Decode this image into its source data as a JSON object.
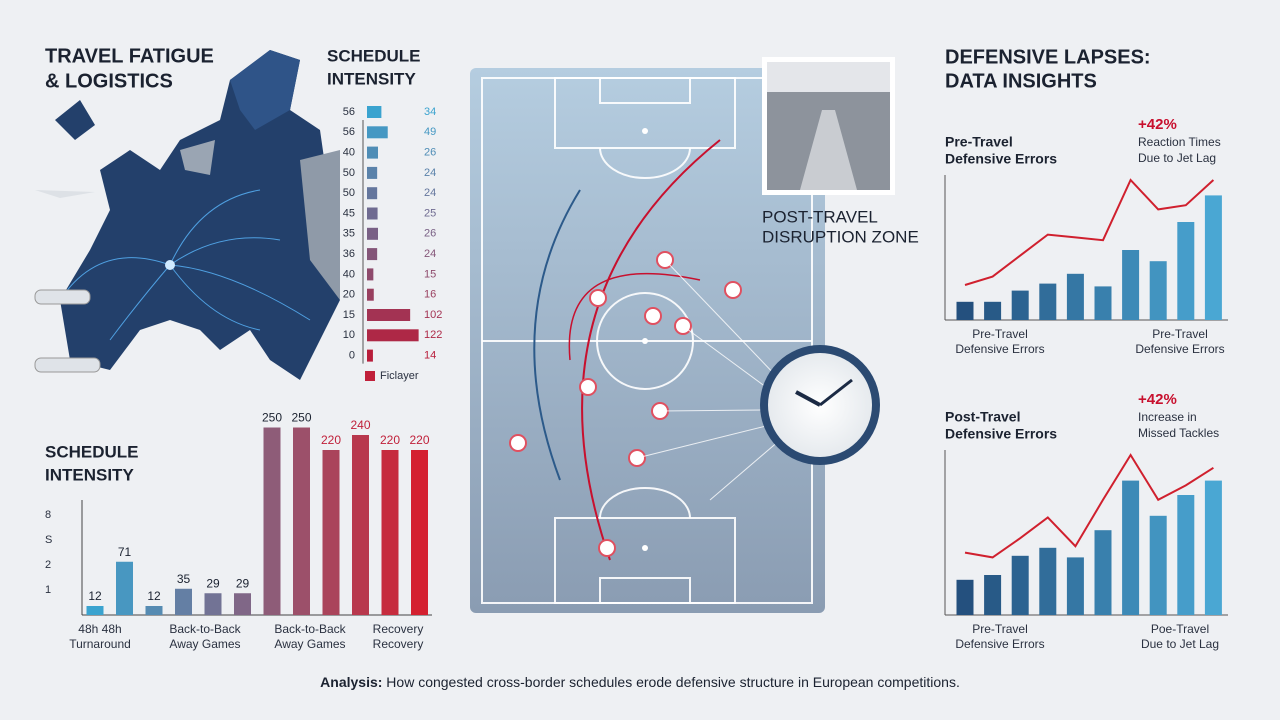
{
  "headings": {
    "travel": [
      "TRAVEL FATIGUE",
      "& LOGISTICS"
    ],
    "defense": [
      "DEFENSIVE LAPSES:",
      "DATA INSIGHTS"
    ]
  },
  "pitch": {
    "zone_label": [
      "POST-TRAVEL",
      "DISRUPTION ZONE"
    ]
  },
  "footer": {
    "lead": "Analysis:",
    "text": " How congested cross-border schedules erode defensive structure in European competitions."
  },
  "chart_data": [
    {
      "type": "hbar",
      "title": [
        "SCHEDULE",
        "INTENSITY"
      ],
      "categories": [
        "56",
        "56",
        "40",
        "50",
        "50",
        "45",
        "35",
        "36",
        "40",
        "20",
        "15",
        "10",
        "0"
      ],
      "values": [
        34,
        49,
        26,
        24,
        24,
        25,
        26,
        24,
        15,
        16,
        102,
        122,
        14
      ],
      "xlim": [
        0,
        130
      ],
      "colors": [
        "#3aa3cf",
        "#b81d3a"
      ],
      "legend": "Ficlayer",
      "legend_color": "#c0203a"
    },
    {
      "type": "bar",
      "title": [
        "SCHEDULE",
        "INTENSITY"
      ],
      "y_labels": [
        "8",
        "S",
        "2",
        "1"
      ],
      "values": [
        12,
        71,
        12,
        35,
        29,
        29,
        250,
        250,
        220,
        240,
        220,
        220
      ],
      "ylim": [
        0,
        260
      ],
      "colors": [
        "#3aa3cf",
        "#d42030"
      ],
      "groups": [
        [
          "48h 48h",
          "Turnaround"
        ],
        [
          "Back-to-Back",
          "Away Games"
        ],
        [
          "Back-to-Back",
          "Away Games"
        ],
        [
          "Recovery",
          "Recovery"
        ]
      ]
    },
    {
      "type": "combo",
      "title": [
        "Pre-Travel",
        "Defensive Errors"
      ],
      "annotation": {
        "value": "+42%",
        "lines": [
          "Reaction Times",
          "Due to Jet Lag"
        ]
      },
      "ylim": [
        0,
        100
      ],
      "series": [
        {
          "kind": "bar",
          "colors": [
            "#24507e",
            "#4aa7d3"
          ],
          "values": [
            13,
            13,
            21,
            26,
            33,
            24,
            50,
            42,
            70,
            89
          ]
        },
        {
          "kind": "line",
          "color": "#d0202e",
          "values": [
            25,
            31,
            46,
            61,
            59,
            57,
            100,
            79,
            82,
            100
          ]
        }
      ],
      "x_labels": [
        [
          "Pre-Travel",
          "Defensive Errors"
        ],
        [
          "Pre-Travel",
          "Defensive Errors"
        ]
      ]
    },
    {
      "type": "combo",
      "title": [
        "Post-Travel",
        "Defensive Errors"
      ],
      "annotation": {
        "value": "+42%",
        "lines": [
          "Increase in",
          "Missed Tackles"
        ]
      },
      "ylim": [
        0,
        100
      ],
      "series": [
        {
          "kind": "bar",
          "colors": [
            "#24507e",
            "#4aa7d3"
          ],
          "values": [
            22,
            25,
            37,
            42,
            36,
            53,
            84,
            62,
            75,
            84
          ]
        },
        {
          "kind": "line",
          "color": "#d0202e",
          "values": [
            39,
            36,
            48,
            61,
            43,
            72,
            100,
            72,
            81,
            92
          ]
        }
      ],
      "x_labels": [
        [
          "Pre-Travel",
          "Defensive Errors"
        ],
        [
          "Poe-Travel",
          "Due to Jet Lag"
        ]
      ]
    }
  ]
}
